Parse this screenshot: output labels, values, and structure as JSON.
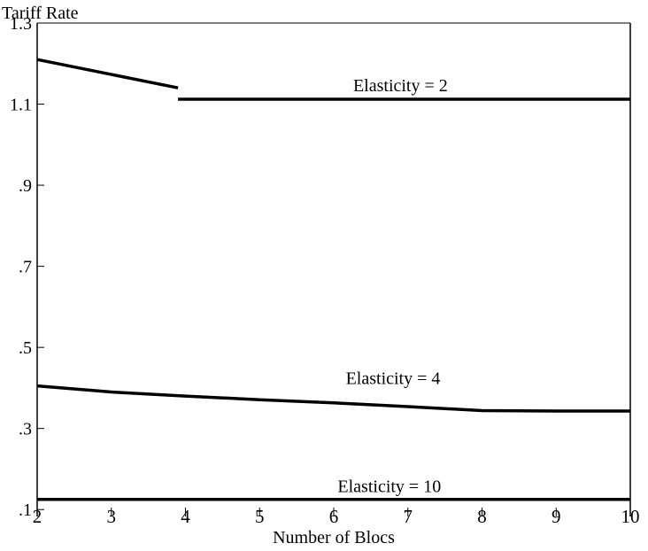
{
  "chart_data": {
    "type": "line",
    "title": "",
    "xlabel": "Number of Blocs",
    "ylabel": "Tariff Rate",
    "xlim": [
      2,
      10
    ],
    "ylim": [
      0.1,
      1.3
    ],
    "x_ticks": [
      {
        "value": 2,
        "label": "2"
      },
      {
        "value": 3,
        "label": "3"
      },
      {
        "value": 4,
        "label": "4"
      },
      {
        "value": 5,
        "label": "5"
      },
      {
        "value": 6,
        "label": "6"
      },
      {
        "value": 7,
        "label": "7"
      },
      {
        "value": 8,
        "label": "8"
      },
      {
        "value": 9,
        "label": "9"
      },
      {
        "value": 10,
        "label": "10"
      }
    ],
    "y_ticks": [
      {
        "value": 0.1,
        "label": ".1"
      },
      {
        "value": 0.3,
        "label": ".3"
      },
      {
        "value": 0.5,
        "label": ".5"
      },
      {
        "value": 0.7,
        "label": ".7"
      },
      {
        "value": 0.9,
        "label": ".9"
      },
      {
        "value": 1.1,
        "label": "1.1"
      },
      {
        "value": 1.3,
        "label": "1.3"
      }
    ],
    "grid": false,
    "legend": "none",
    "series": [
      {
        "label": "Elasticity = 2",
        "color": "#000000",
        "segments": [
          [
            {
              "x": 2,
              "y": 1.21
            },
            {
              "x": 3.9,
              "y": 1.14
            }
          ],
          [
            {
              "x": 3.9,
              "y": 1.112
            },
            {
              "x": 10,
              "y": 1.112
            }
          ]
        ],
        "label_at": {
          "x": 6.9,
          "y": 1.132
        }
      },
      {
        "label": "Elasticity = 4",
        "color": "#000000",
        "segments": [
          [
            {
              "x": 2,
              "y": 0.405
            },
            {
              "x": 3,
              "y": 0.39
            },
            {
              "x": 4,
              "y": 0.38
            },
            {
              "x": 5,
              "y": 0.371
            },
            {
              "x": 6,
              "y": 0.363
            },
            {
              "x": 7,
              "y": 0.354
            },
            {
              "x": 8,
              "y": 0.344
            },
            {
              "x": 9,
              "y": 0.343
            },
            {
              "x": 10,
              "y": 0.343
            }
          ]
        ],
        "label_at": {
          "x": 6.8,
          "y": 0.41
        }
      },
      {
        "label": "Elasticity = 10",
        "color": "#000000",
        "segments": [
          [
            {
              "x": 2,
              "y": 0.125
            },
            {
              "x": 10,
              "y": 0.125
            }
          ]
        ],
        "label_at": {
          "x": 6.75,
          "y": 0.143
        }
      }
    ]
  }
}
